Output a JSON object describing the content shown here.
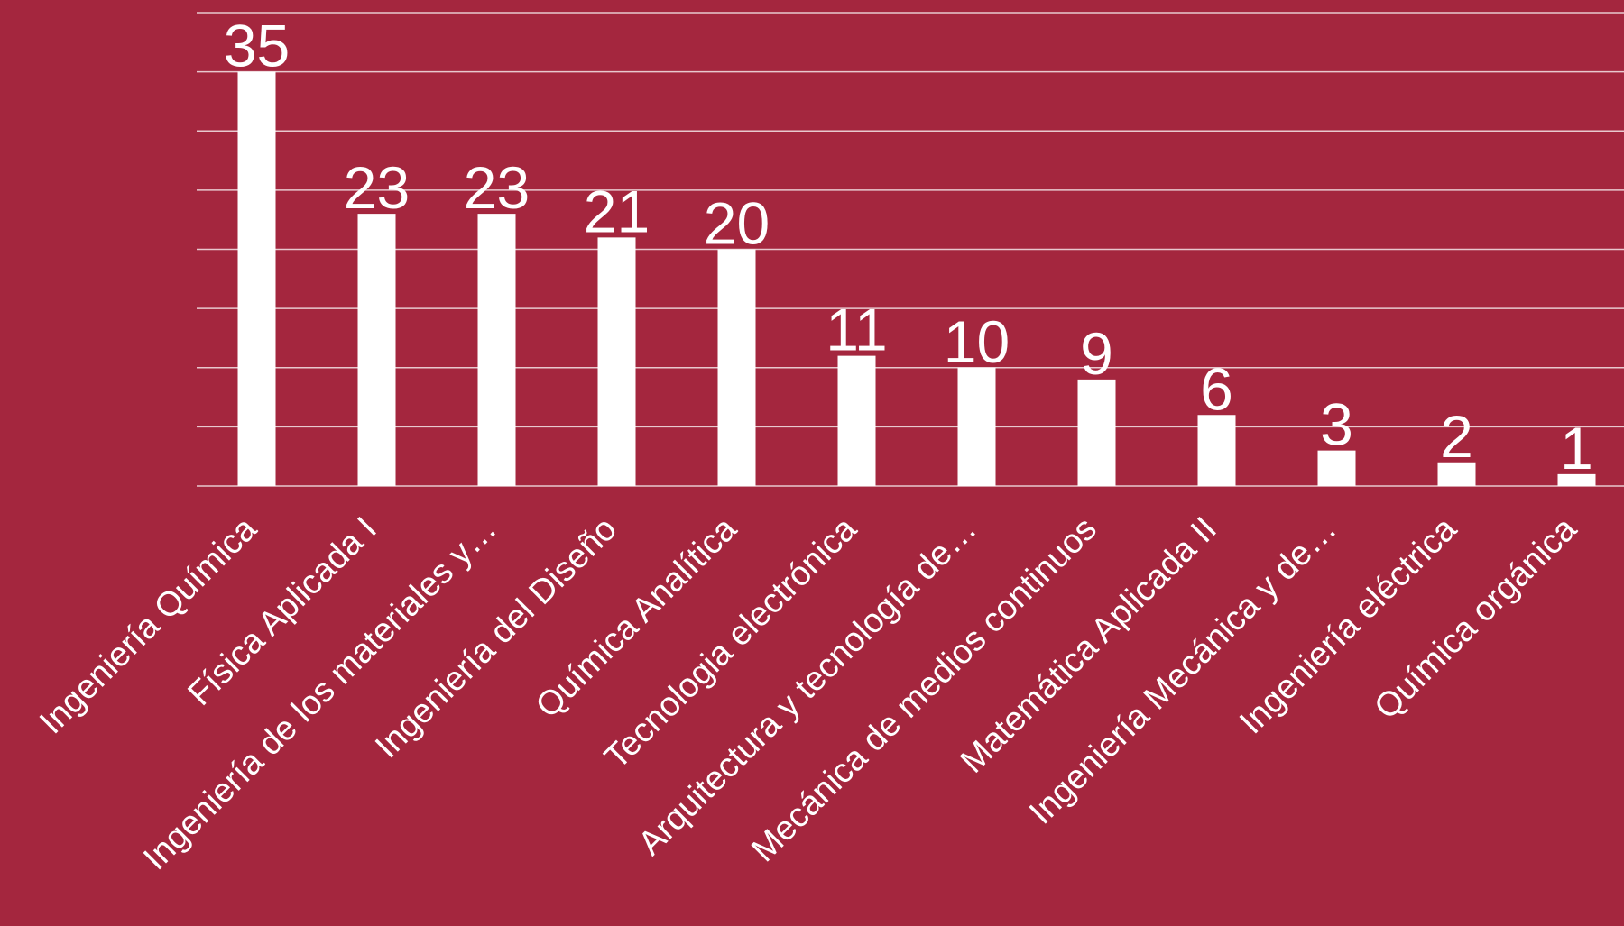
{
  "chart_data": {
    "type": "bar",
    "title": "",
    "xlabel": "",
    "ylabel": "",
    "categories": [
      "Ingeniería Química",
      "Física Aplicada I",
      "Ingeniería de los materiales y…",
      "Ingeniería del Diseño",
      "Química Analítica",
      "Tecnologia electrónica",
      "Arquitectura y tecnología de…",
      "Mecánica de medios continuos",
      "Matemática Aplicada II",
      "Ingeniería Mecánica y de…",
      "Ingeniería eléctrica",
      "Química orgánica"
    ],
    "values": [
      35,
      23,
      23,
      21,
      20,
      11,
      10,
      9,
      6,
      3,
      2,
      1
    ],
    "data_labels": [
      "35",
      "23",
      "23",
      "21",
      "20",
      "11",
      "10",
      "9",
      "6",
      "3",
      "2",
      "1"
    ],
    "ylim": [
      0,
      40
    ],
    "gridlines": [
      0,
      5,
      10,
      15,
      20,
      25,
      30,
      35,
      40
    ],
    "grid": true,
    "show_y_axis_labels": false,
    "legend": "none",
    "colors": {
      "background": "#A4263E",
      "bar": "#FFFFFF",
      "text": "#FFFFFF",
      "grid": "#FFFFFF"
    }
  }
}
